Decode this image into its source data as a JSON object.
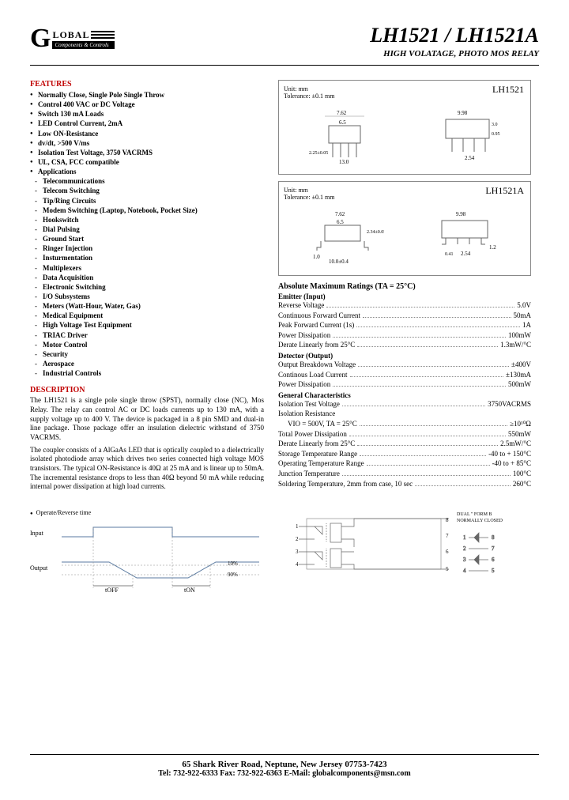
{
  "header": {
    "logo_main": "LOBAL",
    "logo_sub": "Components & Controls",
    "title": "LH1521 / LH1521A",
    "subtitle": "HIGH VOLATAGE, PHOTO MOS RELAY"
  },
  "features": {
    "heading": "FEATURES",
    "items": [
      "Normally Close, Single Pole Single Throw",
      "Control 400 VAC or DC Voltage",
      "Switch 130 mA Loads",
      "LED Control Current, 2mA",
      "Low ON-Resistance",
      "dv/dt, >500 V/ms",
      "Isolation Test Voltage, 3750 VACRMS",
      "UL, CSA, FCC compatible",
      "Applications"
    ],
    "applications": [
      "Telecommunications",
      "Telecom Switching",
      "Tip/Ring Circuits",
      "Modem Switching (Laptop, Notebook, Pocket Size)",
      "Hookswitch",
      "Dial Pulsing",
      "Ground Start",
      "Ringer Injection",
      "Insturmentation",
      "Multiplexers",
      "Data Acquisition",
      "Electronic Switching",
      "I/O Subsystems",
      "Meters (Watt-Hour, Water, Gas)",
      "Medical Equipment",
      "High Voltage Test Equipment",
      "TRIAC Driver",
      "Motor Control",
      "Security",
      "Aerospace",
      "Industrial Controls"
    ]
  },
  "description": {
    "heading": "DESCRIPTION",
    "p1": "The LH1521 is a single pole single throw (SPST), normally close (NC), Mos Relay. The relay can control AC or DC loads currents up to 130 mA, with a supply voltage up to 400 V. The device is packaged in a 8 pin SMD and dual-in line package. Those package offer an insulation dielectric withstand of 3750 VACRMS.",
    "p2": "The coupler consists of a AlGaAs LED that is optically coupled to a dielectrically isolated photodiode array which drives two series connected high voltage MOS transistors. The typical ON-Resistance is 40Ω at 25 mA and is linear up to 50mA. The incremental resistance drops to less than 40Ω beyond 50 mA while reducing internal power dissipation at high load currents."
  },
  "diagrams": {
    "unit_line1": "Unit: mm",
    "unit_line2": "Tolerance: ±0.1 mm",
    "pkg1_label": "LH1521",
    "pkg2_label": "LH1521A",
    "dims1": [
      "7.62",
      "6.5",
      "9.98",
      "3.0",
      "0.95",
      "2.25±0.05",
      "13.0",
      "2.54"
    ],
    "dims2": [
      "7.62",
      "6.5",
      "9.98",
      "2.34±0.05",
      "1.0",
      "10.0±0.4",
      "0.41",
      "2.54",
      "1.2"
    ]
  },
  "ratings": {
    "heading": "Absolute Maximum Ratings (TA = 25°C)",
    "emitter_head": "Emitter (Input)",
    "emitter": [
      {
        "lbl": "Reverse Voltage",
        "val": "5.0V"
      },
      {
        "lbl": "Continuous Forward Current",
        "val": "50mA"
      },
      {
        "lbl": "Peak Forward Current (1s)",
        "val": "1A"
      },
      {
        "lbl": "Power Dissipation",
        "val": "100mW"
      },
      {
        "lbl": "Derate Linearly from 25°C",
        "val": "1.3mW/°C"
      }
    ],
    "detector_head": "Detector (Output)",
    "detector": [
      {
        "lbl": "Output Breakdown Voltage",
        "val": "±400V"
      },
      {
        "lbl": "Continous Load Current",
        "val": "±130mA"
      },
      {
        "lbl": "Power Dissipation",
        "val": "500mW"
      }
    ],
    "general_head": "General Characteristics",
    "general": [
      {
        "lbl": "Isolation Test Voltage",
        "val": "3750VACRMS"
      },
      {
        "lbl": "Isolation Resistance",
        "val": ""
      },
      {
        "lbl": "VIO = 500V, TA = 25°C",
        "val": "≥10¹⁰Ω",
        "indent": true
      },
      {
        "lbl": "Total Power Dissipation",
        "val": "550mW"
      },
      {
        "lbl": "Derate Linearly from 25°C",
        "val": "2.5mW/°C"
      },
      {
        "lbl": "Storage Temperature Range",
        "val": "-40 to + 150°C"
      },
      {
        "lbl": "Operating Temperature Range",
        "val": "-40 to + 85°C"
      },
      {
        "lbl": "Junction Temperature",
        "val": "100°C"
      },
      {
        "lbl": "Soldering Temperature, 2mm from case, 10 sec",
        "val": "260°C"
      }
    ]
  },
  "timing": {
    "title": "Operate/Reverse time",
    "labels": {
      "input": "Input",
      "output": "Output",
      "toff": "tOFF",
      "ton": "tON",
      "p10": "10%",
      "p90": "90%"
    }
  },
  "schematic": {
    "label": "DUAL \" FORM B\nNORMALLY CLOSED",
    "pins": [
      "1",
      "2",
      "3",
      "4",
      "5",
      "6",
      "7",
      "8"
    ]
  },
  "footer": {
    "line1": "65 Shark River Road, Neptune, New Jersey  07753-7423",
    "line2": "Tel:  732-922-6333  Fax:  732-922-6363  E-Mail:  globalcomponents@msn.com"
  }
}
